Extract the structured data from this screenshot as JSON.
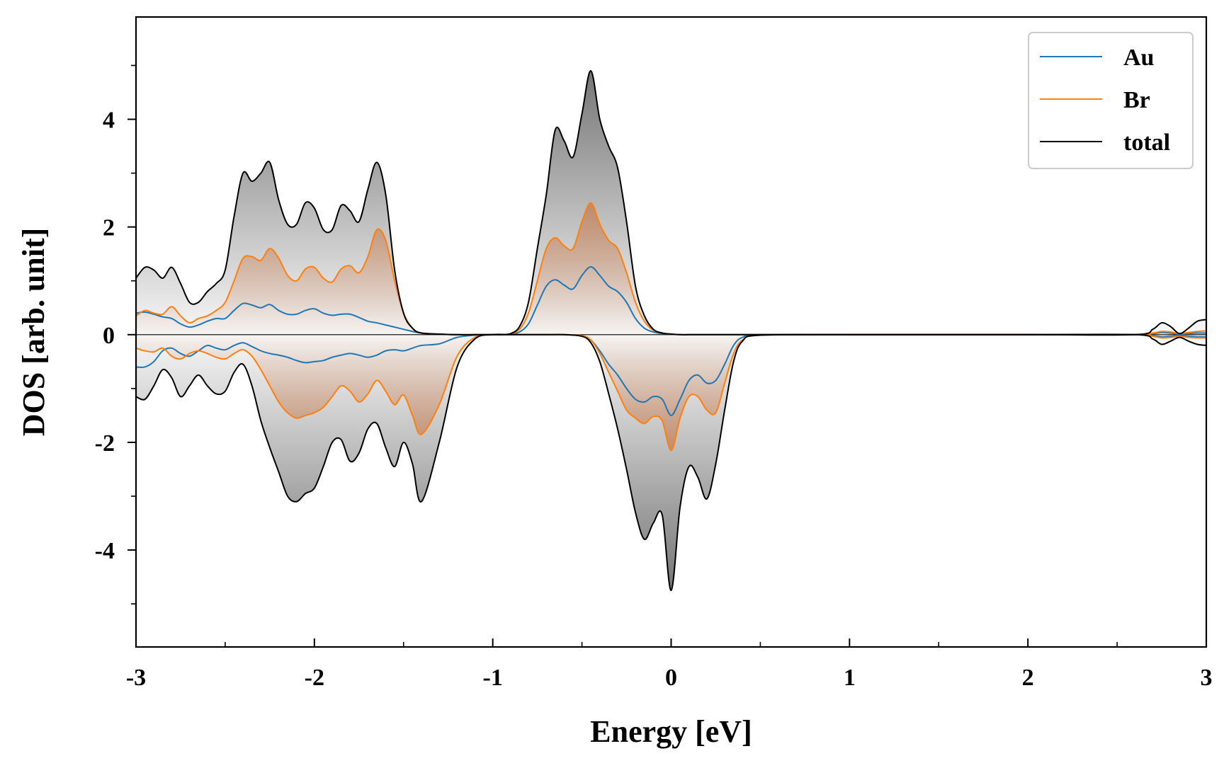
{
  "chart_data": {
    "type": "line",
    "xlabel": "Energy [eV]",
    "ylabel": "DOS [arb. unit]",
    "xlim": [
      -3,
      3
    ],
    "ylim": [
      -5.8,
      5.9
    ],
    "x_major_ticks": [
      -3,
      -2,
      -1,
      0,
      1,
      2,
      3
    ],
    "x_tick_labels": [
      "-3",
      "-2",
      "-1",
      "0",
      "1",
      "2",
      "3"
    ],
    "y_major_ticks": [
      -4,
      -2,
      0,
      2,
      4
    ],
    "y_tick_labels": [
      "-4",
      "-2",
      "0",
      "2",
      "4"
    ],
    "grid": false,
    "legend_position": "top-right",
    "fill": "grey gradient under total curve; orange gradient under Br curve",
    "colors": {
      "Au": "#1f77b4",
      "Br": "#ff7f0e",
      "total": "#000000",
      "fill_grey": "#7f7f7f",
      "fill_orange": "#d2691e"
    },
    "series": [
      {
        "name": "Au",
        "x": [
          -3.0,
          -2.95,
          -2.9,
          -2.85,
          -2.8,
          -2.75,
          -2.7,
          -2.65,
          -2.6,
          -2.55,
          -2.5,
          -2.45,
          -2.4,
          -2.35,
          -2.3,
          -2.25,
          -2.2,
          -2.15,
          -2.1,
          -2.05,
          -2.0,
          -1.95,
          -1.9,
          -1.85,
          -1.8,
          -1.75,
          -1.7,
          -1.65,
          -1.6,
          -1.55,
          -1.5,
          -1.45,
          -1.4,
          -1.3,
          -1.2,
          -1.1,
          -1.0,
          -0.95,
          -0.9,
          -0.85,
          -0.8,
          -0.75,
          -0.7,
          -0.65,
          -0.6,
          -0.55,
          -0.5,
          -0.45,
          -0.4,
          -0.35,
          -0.3,
          -0.25,
          -0.2,
          -0.15,
          -0.1,
          -0.05,
          0.0,
          0.05,
          0.1,
          0.2,
          0.3,
          0.4,
          0.5,
          1.0,
          2.0,
          2.6,
          2.7,
          2.75,
          2.8,
          2.85,
          2.9,
          2.95,
          3.0
        ],
        "values": [
          0.4,
          0.42,
          0.38,
          0.33,
          0.3,
          0.2,
          0.14,
          0.18,
          0.25,
          0.3,
          0.3,
          0.45,
          0.58,
          0.55,
          0.5,
          0.56,
          0.45,
          0.38,
          0.38,
          0.45,
          0.48,
          0.4,
          0.36,
          0.38,
          0.38,
          0.32,
          0.25,
          0.22,
          0.18,
          0.14,
          0.1,
          0.06,
          0.03,
          0.01,
          0.0,
          0.0,
          0.0,
          0.0,
          0.01,
          0.05,
          0.2,
          0.55,
          0.9,
          1.02,
          0.92,
          0.85,
          1.1,
          1.26,
          1.1,
          0.9,
          0.8,
          0.6,
          0.3,
          0.12,
          0.05,
          0.02,
          0.01,
          0.0,
          0.0,
          0.0,
          0.0,
          0.0,
          0.0,
          0.0,
          0.0,
          0.0,
          0.02,
          0.04,
          0.03,
          0.01,
          0.02,
          0.03,
          0.03
        ]
      },
      {
        "name": "Br",
        "x": [
          -3.0,
          -2.95,
          -2.9,
          -2.85,
          -2.8,
          -2.75,
          -2.7,
          -2.65,
          -2.6,
          -2.55,
          -2.5,
          -2.45,
          -2.4,
          -2.35,
          -2.3,
          -2.25,
          -2.2,
          -2.15,
          -2.1,
          -2.05,
          -2.0,
          -1.95,
          -1.9,
          -1.85,
          -1.8,
          -1.75,
          -1.7,
          -1.65,
          -1.6,
          -1.55,
          -1.5,
          -1.45,
          -1.4,
          -1.3,
          -1.2,
          -1.1,
          -1.0,
          -0.95,
          -0.9,
          -0.85,
          -0.8,
          -0.75,
          -0.7,
          -0.65,
          -0.6,
          -0.55,
          -0.5,
          -0.45,
          -0.4,
          -0.35,
          -0.3,
          -0.25,
          -0.2,
          -0.15,
          -0.1,
          -0.05,
          0.0,
          0.05,
          0.1,
          0.2,
          0.3,
          0.4,
          0.5,
          1.0,
          2.0,
          2.6,
          2.7,
          2.75,
          2.8,
          2.85,
          2.9,
          2.95,
          3.0
        ],
        "values": [
          0.35,
          0.45,
          0.4,
          0.38,
          0.52,
          0.35,
          0.22,
          0.3,
          0.35,
          0.45,
          0.6,
          1.0,
          1.42,
          1.45,
          1.38,
          1.6,
          1.42,
          1.1,
          1.0,
          1.22,
          1.25,
          1.05,
          0.98,
          1.22,
          1.28,
          1.15,
          1.45,
          1.95,
          1.75,
          1.0,
          0.4,
          0.12,
          0.03,
          0.01,
          0.0,
          0.0,
          0.0,
          0.0,
          0.02,
          0.1,
          0.4,
          1.0,
          1.6,
          1.8,
          1.65,
          1.6,
          2.1,
          2.45,
          2.05,
          1.75,
          1.6,
          1.15,
          0.6,
          0.25,
          0.08,
          0.03,
          0.01,
          0.0,
          0.0,
          0.0,
          0.0,
          0.0,
          0.0,
          0.0,
          0.0,
          0.0,
          0.03,
          0.06,
          0.05,
          0.02,
          0.04,
          0.06,
          0.07
        ]
      },
      {
        "name": "total",
        "x": [
          -3.0,
          -2.95,
          -2.9,
          -2.85,
          -2.8,
          -2.75,
          -2.7,
          -2.65,
          -2.6,
          -2.55,
          -2.5,
          -2.45,
          -2.4,
          -2.35,
          -2.3,
          -2.25,
          -2.2,
          -2.15,
          -2.1,
          -2.05,
          -2.0,
          -1.95,
          -1.9,
          -1.85,
          -1.8,
          -1.75,
          -1.7,
          -1.65,
          -1.6,
          -1.55,
          -1.5,
          -1.45,
          -1.4,
          -1.3,
          -1.2,
          -1.1,
          -1.0,
          -0.95,
          -0.9,
          -0.85,
          -0.8,
          -0.75,
          -0.7,
          -0.65,
          -0.6,
          -0.55,
          -0.5,
          -0.45,
          -0.4,
          -0.35,
          -0.3,
          -0.25,
          -0.2,
          -0.15,
          -0.1,
          -0.05,
          0.0,
          0.05,
          0.1,
          0.2,
          0.3,
          0.4,
          0.5,
          1.0,
          2.0,
          2.6,
          2.7,
          2.75,
          2.8,
          2.85,
          2.9,
          2.95,
          3.0
        ],
        "values": [
          1.05,
          1.25,
          1.2,
          1.05,
          1.25,
          0.95,
          0.6,
          0.6,
          0.8,
          0.95,
          1.2,
          2.2,
          3.0,
          2.85,
          3.0,
          3.2,
          2.5,
          2.05,
          2.05,
          2.45,
          2.35,
          1.95,
          1.95,
          2.4,
          2.3,
          2.1,
          2.7,
          3.2,
          2.6,
          1.2,
          0.4,
          0.12,
          0.03,
          0.01,
          0.0,
          0.0,
          0.0,
          0.0,
          0.02,
          0.15,
          0.6,
          1.6,
          2.6,
          3.8,
          3.6,
          3.3,
          4.1,
          4.9,
          4.0,
          3.5,
          3.1,
          2.1,
          0.9,
          0.35,
          0.1,
          0.03,
          0.01,
          0.0,
          0.0,
          0.0,
          0.0,
          0.0,
          0.0,
          0.0,
          0.0,
          0.0,
          0.1,
          0.22,
          0.15,
          0.02,
          0.12,
          0.25,
          0.28
        ]
      },
      {
        "name": "Au",
        "x": [
          -3.0,
          -2.95,
          -2.9,
          -2.85,
          -2.8,
          -2.75,
          -2.7,
          -2.65,
          -2.6,
          -2.55,
          -2.5,
          -2.45,
          -2.4,
          -2.35,
          -2.3,
          -2.25,
          -2.2,
          -2.15,
          -2.1,
          -2.05,
          -2.0,
          -1.95,
          -1.9,
          -1.85,
          -1.8,
          -1.75,
          -1.7,
          -1.65,
          -1.6,
          -1.55,
          -1.5,
          -1.45,
          -1.4,
          -1.3,
          -1.2,
          -1.1,
          -1.0,
          -0.9,
          -0.8,
          -0.7,
          -0.6,
          -0.5,
          -0.45,
          -0.4,
          -0.35,
          -0.3,
          -0.25,
          -0.2,
          -0.15,
          -0.1,
          -0.05,
          0.0,
          0.05,
          0.1,
          0.15,
          0.2,
          0.25,
          0.3,
          0.35,
          0.4,
          0.5,
          1.0,
          2.0,
          2.6,
          2.7,
          2.75,
          2.8,
          2.85,
          2.9,
          2.95,
          3.0
        ],
        "values": [
          -0.6,
          -0.6,
          -0.5,
          -0.3,
          -0.25,
          -0.35,
          -0.4,
          -0.3,
          -0.2,
          -0.25,
          -0.28,
          -0.2,
          -0.15,
          -0.22,
          -0.3,
          -0.35,
          -0.38,
          -0.42,
          -0.48,
          -0.52,
          -0.5,
          -0.48,
          -0.42,
          -0.38,
          -0.35,
          -0.38,
          -0.42,
          -0.38,
          -0.3,
          -0.28,
          -0.3,
          -0.25,
          -0.2,
          -0.17,
          -0.05,
          -0.01,
          0.0,
          0.0,
          0.0,
          0.0,
          0.0,
          -0.02,
          -0.1,
          -0.3,
          -0.55,
          -0.75,
          -1.0,
          -1.2,
          -1.25,
          -1.15,
          -1.2,
          -1.5,
          -1.2,
          -0.85,
          -0.75,
          -0.9,
          -0.85,
          -0.55,
          -0.2,
          -0.05,
          0.0,
          0.0,
          0.0,
          0.0,
          -0.02,
          -0.04,
          -0.03,
          -0.02,
          -0.03,
          -0.04,
          -0.04
        ]
      },
      {
        "name": "Br",
        "x": [
          -3.0,
          -2.95,
          -2.9,
          -2.85,
          -2.8,
          -2.75,
          -2.7,
          -2.65,
          -2.6,
          -2.55,
          -2.5,
          -2.45,
          -2.4,
          -2.35,
          -2.3,
          -2.25,
          -2.2,
          -2.15,
          -2.1,
          -2.05,
          -2.0,
          -1.95,
          -1.9,
          -1.85,
          -1.8,
          -1.75,
          -1.7,
          -1.65,
          -1.6,
          -1.55,
          -1.5,
          -1.45,
          -1.4,
          -1.3,
          -1.2,
          -1.1,
          -1.0,
          -0.9,
          -0.8,
          -0.7,
          -0.6,
          -0.5,
          -0.45,
          -0.4,
          -0.35,
          -0.3,
          -0.25,
          -0.2,
          -0.15,
          -0.1,
          -0.05,
          0.0,
          0.05,
          0.1,
          0.15,
          0.2,
          0.25,
          0.3,
          0.35,
          0.4,
          0.5,
          1.0,
          2.0,
          2.6,
          2.7,
          2.75,
          2.8,
          2.85,
          2.9,
          2.95,
          3.0
        ],
        "values": [
          -0.25,
          -0.3,
          -0.32,
          -0.25,
          -0.4,
          -0.45,
          -0.35,
          -0.3,
          -0.35,
          -0.42,
          -0.45,
          -0.35,
          -0.28,
          -0.4,
          -0.65,
          -0.95,
          -1.25,
          -1.45,
          -1.55,
          -1.5,
          -1.45,
          -1.35,
          -1.15,
          -0.95,
          -1.05,
          -1.25,
          -1.1,
          -0.85,
          -1.05,
          -1.3,
          -1.12,
          -1.5,
          -1.85,
          -1.3,
          -0.4,
          -0.05,
          0.0,
          0.0,
          0.0,
          0.0,
          0.0,
          -0.02,
          -0.1,
          -0.35,
          -0.7,
          -1.05,
          -1.4,
          -1.55,
          -1.65,
          -1.52,
          -1.6,
          -2.15,
          -1.55,
          -1.15,
          -1.15,
          -1.4,
          -1.45,
          -0.9,
          -0.35,
          -0.1,
          -0.01,
          0.0,
          0.0,
          0.0,
          -0.03,
          -0.06,
          -0.05,
          -0.03,
          -0.05,
          -0.06,
          -0.06
        ]
      },
      {
        "name": "total",
        "x": [
          -3.0,
          -2.95,
          -2.9,
          -2.85,
          -2.8,
          -2.75,
          -2.7,
          -2.65,
          -2.6,
          -2.55,
          -2.5,
          -2.45,
          -2.4,
          -2.35,
          -2.3,
          -2.25,
          -2.2,
          -2.15,
          -2.1,
          -2.05,
          -2.0,
          -1.95,
          -1.9,
          -1.85,
          -1.8,
          -1.75,
          -1.7,
          -1.65,
          -1.6,
          -1.55,
          -1.5,
          -1.45,
          -1.4,
          -1.3,
          -1.2,
          -1.1,
          -1.0,
          -0.9,
          -0.8,
          -0.7,
          -0.6,
          -0.5,
          -0.45,
          -0.4,
          -0.35,
          -0.3,
          -0.25,
          -0.2,
          -0.15,
          -0.1,
          -0.05,
          0.0,
          0.05,
          0.1,
          0.15,
          0.2,
          0.25,
          0.3,
          0.35,
          0.4,
          0.5,
          1.0,
          2.0,
          2.6,
          2.7,
          2.75,
          2.8,
          2.85,
          2.9,
          2.95,
          3.0
        ],
        "values": [
          -1.15,
          -1.2,
          -0.95,
          -0.65,
          -0.8,
          -1.15,
          -0.95,
          -0.75,
          -0.95,
          -1.1,
          -1.05,
          -0.7,
          -0.55,
          -0.95,
          -1.6,
          -2.1,
          -2.55,
          -3.0,
          -3.1,
          -2.95,
          -2.85,
          -2.45,
          -2.0,
          -1.95,
          -2.35,
          -2.2,
          -1.75,
          -1.65,
          -2.1,
          -2.45,
          -2.0,
          -2.4,
          -3.1,
          -2.0,
          -0.6,
          -0.08,
          0.0,
          0.0,
          0.0,
          0.0,
          0.0,
          -0.03,
          -0.15,
          -0.5,
          -1.1,
          -1.75,
          -2.5,
          -3.3,
          -3.8,
          -3.5,
          -3.35,
          -4.75,
          -3.2,
          -2.45,
          -2.65,
          -3.05,
          -2.4,
          -1.4,
          -0.5,
          -0.12,
          -0.01,
          0.0,
          0.0,
          0.0,
          -0.08,
          -0.18,
          -0.12,
          -0.05,
          -0.12,
          -0.18,
          -0.2
        ]
      }
    ]
  }
}
